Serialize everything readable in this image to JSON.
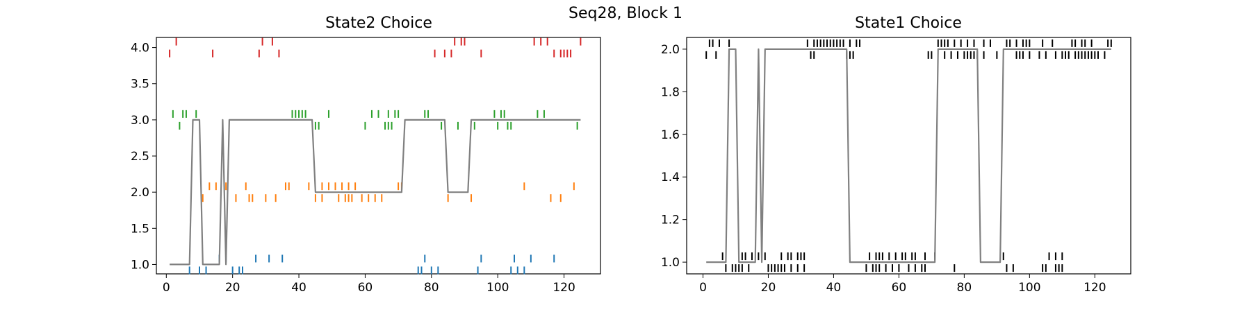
{
  "figure": {
    "suptitle": "Seq28, Block 1"
  },
  "chart_data": [
    {
      "type": "line",
      "title": "State2 Choice",
      "xlabel": "",
      "ylabel": "",
      "xlim": [
        -3,
        131
      ],
      "ylim": [
        0.87,
        4.14
      ],
      "xticks": [
        0,
        20,
        40,
        60,
        80,
        100,
        120
      ],
      "yticks": [
        1.0,
        1.5,
        2.0,
        2.5,
        3.0,
        3.5,
        4.0
      ],
      "ytick_decimals": 1,
      "grid": false,
      "legend": "none",
      "line": {
        "color": "#808080",
        "points": [
          [
            1,
            1
          ],
          [
            7,
            1
          ],
          [
            8,
            3
          ],
          [
            10,
            3
          ],
          [
            11,
            1
          ],
          [
            16,
            1
          ],
          [
            17,
            3
          ],
          [
            18,
            1
          ],
          [
            19,
            3
          ],
          [
            44,
            3
          ],
          [
            45,
            2
          ],
          [
            71,
            2
          ],
          [
            72,
            3
          ],
          [
            84,
            3
          ],
          [
            85,
            2
          ],
          [
            91,
            2
          ],
          [
            92,
            3
          ],
          [
            125,
            3
          ]
        ]
      },
      "event_ticks": [
        {
          "choice": 1,
          "color": "#1f77b4",
          "up": [
            16,
            18,
            27,
            31,
            35,
            78,
            95,
            105,
            110,
            117
          ],
          "down": [
            7,
            10,
            12,
            20,
            22,
            23,
            76,
            77,
            80,
            82,
            94,
            104,
            106,
            108
          ]
        },
        {
          "choice": 2,
          "color": "#ff7f0e",
          "up": [
            13,
            15,
            18,
            24,
            36,
            37,
            43,
            47,
            49,
            51,
            53,
            55,
            57,
            70,
            71,
            108,
            123
          ],
          "down": [
            11,
            21,
            25,
            26,
            30,
            33,
            45,
            47,
            52,
            54,
            55,
            56,
            59,
            61,
            63,
            65,
            85,
            92,
            116,
            119
          ]
        },
        {
          "choice": 3,
          "color": "#2ca02c",
          "up": [
            2,
            5,
            6,
            9,
            38,
            39,
            40,
            41,
            42,
            49,
            62,
            64,
            67,
            69,
            70,
            78,
            79,
            99,
            101,
            102,
            112,
            114
          ],
          "down": [
            4,
            45,
            46,
            60,
            66,
            67,
            68,
            83,
            88,
            93,
            100,
            103,
            104,
            124
          ]
        },
        {
          "choice": 4,
          "color": "#d62728",
          "up": [
            3,
            29,
            32,
            87,
            89,
            90,
            111,
            113,
            115,
            125
          ],
          "down": [
            1,
            14,
            28,
            34,
            81,
            84,
            86,
            95,
            117,
            119,
            120,
            121,
            122
          ]
        }
      ]
    },
    {
      "type": "line",
      "title": "State1 Choice",
      "xlabel": "",
      "ylabel": "",
      "xlim": [
        -5,
        131
      ],
      "ylim": [
        0.945,
        2.055
      ],
      "xticks": [
        0,
        20,
        40,
        60,
        80,
        100,
        120
      ],
      "yticks": [
        1.0,
        1.2,
        1.4,
        1.6,
        1.8,
        2.0
      ],
      "ytick_decimals": 1,
      "grid": false,
      "legend": "none",
      "line": {
        "color": "#808080",
        "points": [
          [
            1,
            1
          ],
          [
            7,
            1
          ],
          [
            8,
            2
          ],
          [
            10,
            2
          ],
          [
            11,
            1
          ],
          [
            16,
            1
          ],
          [
            17,
            2
          ],
          [
            18,
            1
          ],
          [
            19,
            2
          ],
          [
            44,
            2
          ],
          [
            45,
            1
          ],
          [
            71,
            1
          ],
          [
            72,
            2
          ],
          [
            84,
            2
          ],
          [
            85,
            1
          ],
          [
            91,
            1
          ],
          [
            92,
            2
          ],
          [
            125,
            2
          ]
        ]
      },
      "event_ticks": [
        {
          "choice": 1,
          "color": "#000000",
          "up": [
            6,
            12,
            13,
            15,
            17,
            19,
            24,
            26,
            27,
            29,
            30,
            31,
            51,
            53,
            54,
            55,
            57,
            59,
            61,
            62,
            64,
            65,
            68,
            71,
            92,
            106,
            108,
            110
          ],
          "down": [
            7,
            9,
            10,
            11,
            12,
            14,
            20,
            21,
            22,
            23,
            24,
            25,
            27,
            29,
            31,
            50,
            52,
            53,
            54,
            56,
            58,
            60,
            63,
            65,
            67,
            68,
            77,
            93,
            95,
            104,
            105,
            108,
            109,
            110
          ]
        },
        {
          "choice": 2,
          "color": "#000000",
          "up": [
            2,
            3,
            5,
            8,
            32,
            34,
            35,
            36,
            37,
            38,
            39,
            40,
            41,
            42,
            43,
            45,
            47,
            48,
            72,
            73,
            74,
            75,
            77,
            79,
            81,
            83,
            86,
            88,
            93,
            94,
            96,
            98,
            99,
            100,
            104,
            107,
            113,
            114,
            116,
            117,
            119,
            124,
            125
          ],
          "down": [
            1,
            4,
            33,
            34,
            44,
            45,
            46,
            69,
            70,
            74,
            76,
            78,
            80,
            81,
            82,
            83,
            84,
            86,
            90,
            96,
            97,
            98,
            100,
            103,
            105,
            108,
            110,
            111,
            112,
            114,
            115,
            116,
            117,
            118,
            119,
            120,
            121,
            123
          ]
        }
      ]
    }
  ]
}
